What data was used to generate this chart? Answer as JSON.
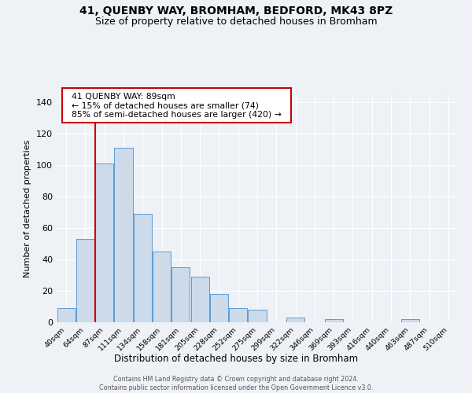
{
  "title_main": "41, QUENBY WAY, BROMHAM, BEDFORD, MK43 8PZ",
  "title_sub": "Size of property relative to detached houses in Bromham",
  "xlabel": "Distribution of detached houses by size in Bromham",
  "ylabel": "Number of detached properties",
  "bar_color": "#ccdaea",
  "bar_edge_color": "#5b9bd5",
  "bin_labels": [
    "40sqm",
    "64sqm",
    "87sqm",
    "111sqm",
    "134sqm",
    "158sqm",
    "181sqm",
    "205sqm",
    "228sqm",
    "252sqm",
    "275sqm",
    "299sqm",
    "322sqm",
    "346sqm",
    "369sqm",
    "393sqm",
    "416sqm",
    "440sqm",
    "463sqm",
    "487sqm",
    "510sqm"
  ],
  "bar_heights": [
    9,
    53,
    101,
    111,
    69,
    45,
    35,
    29,
    18,
    9,
    8,
    0,
    3,
    0,
    2,
    0,
    0,
    0,
    2,
    0,
    0
  ],
  "ylim": [
    0,
    145
  ],
  "yticks": [
    0,
    20,
    40,
    60,
    80,
    100,
    120,
    140
  ],
  "vline_index": 2,
  "vline_color": "#cc0000",
  "annotation_title": "41 QUENBY WAY: 89sqm",
  "annotation_line1": "← 15% of detached houses are smaller (74)",
  "annotation_line2": "85% of semi-detached houses are larger (420) →",
  "annotation_box_color": "#cc0000",
  "footer_line1": "Contains HM Land Registry data © Crown copyright and database right 2024.",
  "footer_line2": "Contains public sector information licensed under the Open Government Licence v3.0.",
  "background_color": "#eef2f7",
  "grid_color": "#ffffff",
  "title_main_fontsize": 10,
  "title_sub_fontsize": 9
}
